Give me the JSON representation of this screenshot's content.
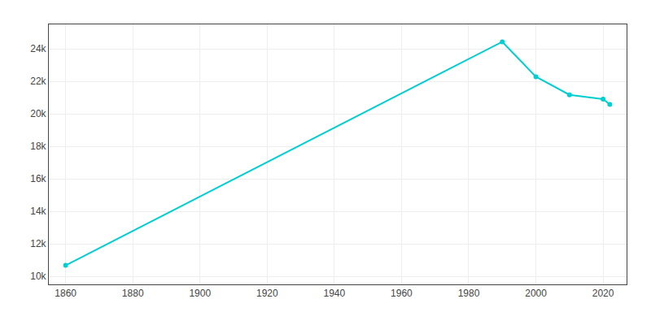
{
  "chart_data": {
    "type": "line",
    "x": [
      1860,
      1990,
      2000,
      2010,
      2020,
      2022
    ],
    "values": [
      10673,
      24426,
      22279,
      21165,
      20899,
      20574
    ],
    "color": "#00CED1",
    "marker": "circle",
    "xlim": [
      1855,
      2027
    ],
    "xticks": [
      1860,
      1880,
      1900,
      1920,
      1940,
      1960,
      1980,
      2000,
      2020
    ],
    "ylim": [
      9500,
      25500
    ],
    "yticks": [
      {
        "value": 10000,
        "label": "10k"
      },
      {
        "value": 12000,
        "label": "12k"
      },
      {
        "value": 14000,
        "label": "14k"
      },
      {
        "value": 16000,
        "label": "16k"
      },
      {
        "value": 18000,
        "label": "18k"
      },
      {
        "value": 20000,
        "label": "20k"
      },
      {
        "value": 22000,
        "label": "22k"
      },
      {
        "value": 24000,
        "label": "24k"
      }
    ],
    "grid": true
  }
}
